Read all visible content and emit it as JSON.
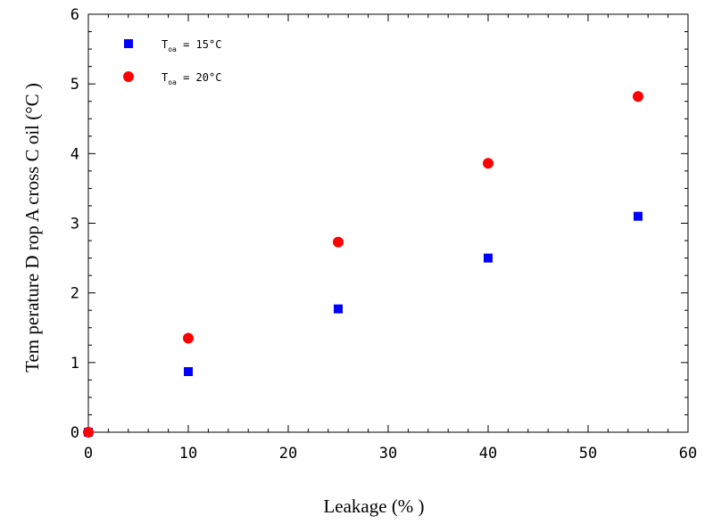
{
  "chart_data": {
    "type": "scatter",
    "title": "",
    "xlabel": "Leakage (% )",
    "ylabel": "Tem perature D rop A cross C oil (°C )",
    "xlim": [
      0,
      60
    ],
    "ylim": [
      0,
      6
    ],
    "x_ticks": [
      0,
      10,
      20,
      30,
      40,
      50,
      60
    ],
    "y_ticks": [
      0,
      1,
      2,
      3,
      4,
      5,
      6
    ],
    "grid": false,
    "legend_position": "top-left",
    "series": [
      {
        "name_main": "T",
        "name_sub": "oa",
        "name_rest": " = 15°C",
        "marker": "square",
        "color": "#0000ff",
        "x": [
          0,
          10,
          25,
          40,
          55
        ],
        "y": [
          0,
          0.87,
          1.77,
          2.5,
          3.1
        ]
      },
      {
        "name_main": "T",
        "name_sub": "oa",
        "name_rest": " = 20°C",
        "marker": "circle",
        "color": "#ff0000",
        "x": [
          0,
          10,
          25,
          40,
          55
        ],
        "y": [
          0,
          1.35,
          2.73,
          3.86,
          4.82
        ]
      }
    ]
  }
}
